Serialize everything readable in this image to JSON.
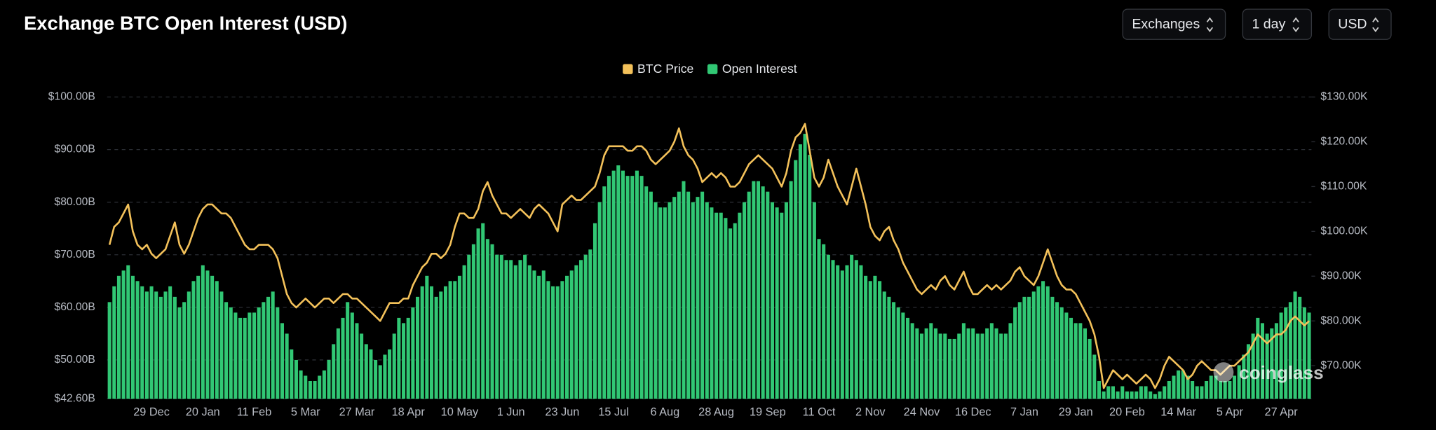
{
  "controls": [
    "Exchanges",
    "1 day",
    "USD"
  ],
  "watermark": "coinglass",
  "chart_data": {
    "type": "combo",
    "title": "Exchange BTC Open Interest (USD)",
    "categories": [
      null,
      null,
      null,
      null,
      null,
      null,
      null,
      null,
      null,
      "29 Dec",
      null,
      null,
      null,
      null,
      null,
      null,
      null,
      null,
      null,
      null,
      "20 Jan",
      null,
      null,
      null,
      null,
      null,
      null,
      null,
      null,
      null,
      null,
      "11 Feb",
      null,
      null,
      null,
      null,
      null,
      null,
      null,
      null,
      null,
      null,
      "5 Mar",
      null,
      null,
      null,
      null,
      null,
      null,
      null,
      null,
      null,
      null,
      "27 Mar",
      null,
      null,
      null,
      null,
      null,
      null,
      null,
      null,
      null,
      null,
      "18 Apr",
      null,
      null,
      null,
      null,
      null,
      null,
      null,
      null,
      null,
      null,
      "10 May",
      null,
      null,
      null,
      null,
      null,
      null,
      null,
      null,
      null,
      null,
      "1 Jun",
      null,
      null,
      null,
      null,
      null,
      null,
      null,
      null,
      null,
      null,
      "23 Jun",
      null,
      null,
      null,
      null,
      null,
      null,
      null,
      null,
      null,
      null,
      "15 Jul",
      null,
      null,
      null,
      null,
      null,
      null,
      null,
      null,
      null,
      null,
      "6 Aug",
      null,
      null,
      null,
      null,
      null,
      null,
      null,
      null,
      null,
      null,
      "28 Aug",
      null,
      null,
      null,
      null,
      null,
      null,
      null,
      null,
      null,
      null,
      "19 Sep",
      null,
      null,
      null,
      null,
      null,
      null,
      null,
      null,
      null,
      null,
      "11 Oct",
      null,
      null,
      null,
      null,
      null,
      null,
      null,
      null,
      null,
      null,
      "2 Nov",
      null,
      null,
      null,
      null,
      null,
      null,
      null,
      null,
      null,
      null,
      "24 Nov",
      null,
      null,
      null,
      null,
      null,
      null,
      null,
      null,
      null,
      null,
      "16 Dec",
      null,
      null,
      null,
      null,
      null,
      null,
      null,
      null,
      null,
      null,
      "7 Jan",
      null,
      null,
      null,
      null,
      null,
      null,
      null,
      null,
      null,
      null,
      "29 Jan",
      null,
      null,
      null,
      null,
      null,
      null,
      null,
      null,
      null,
      null,
      "20 Feb",
      null,
      null,
      null,
      null,
      null,
      null,
      null,
      null,
      null,
      null,
      "14 Mar",
      null,
      null,
      null,
      null,
      null,
      null,
      null,
      null,
      null,
      null,
      "5 Apr",
      null,
      null,
      null,
      null,
      null,
      null,
      null,
      null,
      null,
      null,
      "27 Apr",
      null,
      null,
      null,
      null,
      null,
      null
    ],
    "series": [
      {
        "name": "BTC Price",
        "type": "line",
        "axis": "y2",
        "color": "#f3c15a",
        "values": [
          97,
          101,
          102,
          104,
          106,
          100,
          97,
          96,
          97,
          95,
          94,
          95,
          96,
          99,
          102,
          97,
          95,
          97,
          100,
          103,
          105,
          106,
          106,
          105,
          104,
          104,
          103,
          101,
          99,
          97,
          96,
          96,
          97,
          97,
          97,
          96,
          94,
          90,
          86,
          84,
          83,
          84,
          85,
          84,
          83,
          84,
          85,
          85,
          84,
          85,
          86,
          86,
          85,
          85,
          84,
          83,
          82,
          81,
          80,
          82,
          84,
          84,
          84,
          85,
          85,
          88,
          90,
          92,
          93,
          95,
          95,
          94,
          95,
          97,
          101,
          104,
          104,
          103,
          103,
          105,
          109,
          111,
          108,
          106,
          104,
          104,
          103,
          104,
          105,
          104,
          103,
          105,
          106,
          105,
          104,
          102,
          100,
          106,
          107,
          108,
          107,
          107,
          108,
          109,
          110,
          113,
          117,
          119,
          119,
          119,
          119,
          118,
          118,
          119,
          119,
          118,
          116,
          115,
          116,
          117,
          118,
          120,
          123,
          119,
          117,
          116,
          114,
          111,
          112,
          113,
          112,
          113,
          112,
          110,
          110,
          111,
          113,
          115,
          116,
          117,
          116,
          115,
          114,
          112,
          110,
          113,
          118,
          121,
          122,
          124,
          118,
          112,
          110,
          112,
          116,
          113,
          110,
          108,
          106,
          110,
          114,
          110,
          106,
          101,
          99,
          98,
          100,
          101,
          98,
          96,
          93,
          91,
          89,
          87,
          86,
          87,
          88,
          87,
          89,
          90,
          88,
          87,
          89,
          91,
          88,
          86,
          86,
          87,
          88,
          87,
          88,
          87,
          88,
          89,
          91,
          92,
          90,
          89,
          88,
          90,
          93,
          96,
          93,
          90,
          88,
          87,
          87,
          86,
          84,
          82,
          80,
          77,
          72,
          65,
          67,
          69,
          68,
          67,
          68,
          67,
          66,
          67,
          68,
          67,
          65,
          67,
          70,
          72,
          71,
          70,
          69,
          67,
          68,
          70,
          71,
          70,
          69,
          69,
          68,
          69,
          70,
          70,
          71,
          72,
          73,
          75,
          77,
          76,
          75,
          76,
          77,
          77,
          78,
          80,
          81,
          80,
          79,
          80
        ]
      },
      {
        "name": "Open Interest",
        "type": "bar",
        "axis": "y",
        "color": "#31c774",
        "values": [
          61,
          64,
          66,
          67,
          68,
          66,
          65,
          64,
          63,
          64,
          63,
          62,
          63,
          64,
          62,
          60,
          61,
          63,
          65,
          66,
          68,
          67,
          66,
          65,
          63,
          61,
          60,
          59,
          58,
          58,
          59,
          59,
          60,
          61,
          62,
          63,
          60,
          57,
          55,
          52,
          50,
          48,
          47,
          46,
          46,
          47,
          48,
          50,
          53,
          56,
          58,
          61,
          59,
          57,
          55,
          53,
          52,
          50,
          49,
          51,
          52,
          55,
          58,
          57,
          58,
          60,
          62,
          64,
          66,
          64,
          62,
          63,
          64,
          65,
          65,
          66,
          68,
          70,
          72,
          75,
          76,
          73,
          72,
          70,
          70,
          69,
          69,
          68,
          69,
          70,
          68,
          67,
          66,
          67,
          65,
          64,
          64,
          65,
          66,
          67,
          68,
          69,
          70,
          71,
          76,
          80,
          83,
          85,
          86,
          87,
          86,
          85,
          85,
          86,
          85,
          83,
          82,
          80,
          79,
          79,
          80,
          81,
          82,
          84,
          82,
          80,
          81,
          82,
          80,
          79,
          78,
          78,
          77,
          75,
          76,
          78,
          80,
          82,
          84,
          84,
          83,
          82,
          80,
          79,
          78,
          80,
          84,
          88,
          91,
          93,
          89,
          80,
          73,
          72,
          70,
          69,
          68,
          67,
          68,
          70,
          69,
          68,
          66,
          65,
          66,
          65,
          63,
          62,
          61,
          60,
          59,
          58,
          57,
          56,
          55,
          56,
          57,
          56,
          55,
          55,
          54,
          54,
          55,
          57,
          56,
          56,
          55,
          55,
          56,
          57,
          56,
          55,
          55,
          57,
          60,
          61,
          62,
          62,
          63,
          64,
          65,
          64,
          62,
          61,
          60,
          59,
          58,
          57,
          57,
          56,
          54,
          51,
          46,
          44,
          45,
          45,
          44,
          45,
          44,
          44,
          44,
          45,
          45,
          44,
          43.5,
          44,
          45,
          46,
          47,
          48,
          48,
          47,
          46,
          45,
          45,
          46,
          47,
          47,
          46,
          46,
          46,
          47,
          49,
          51,
          53,
          55,
          58,
          57,
          55,
          56,
          57,
          59,
          60,
          61,
          63,
          62,
          60,
          59
        ]
      }
    ],
    "ylim": [
      42.6,
      100
    ],
    "yticks": [
      {
        "value": 42.6,
        "label": "$42.60B"
      },
      {
        "value": 50,
        "label": "$50.00B"
      },
      {
        "value": 60,
        "label": "$60.00B"
      },
      {
        "value": 70,
        "label": "$70.00B"
      },
      {
        "value": 80,
        "label": "$80.00B"
      },
      {
        "value": 90,
        "label": "$90.00B"
      },
      {
        "value": 100,
        "label": "$100.00B"
      }
    ],
    "y2lim": [
      62.6,
      130
    ],
    "y2ticks": [
      {
        "value": 70,
        "label": "$70.00K"
      },
      {
        "value": 80,
        "label": "$80.00K"
      },
      {
        "value": 90,
        "label": "$90.00K"
      },
      {
        "value": 100,
        "label": "$100.00K"
      },
      {
        "value": 110,
        "label": "$110.00K"
      },
      {
        "value": 120,
        "label": "$120.00K"
      },
      {
        "value": 130,
        "label": "$130.00K"
      }
    ],
    "grid": true,
    "legend": "top"
  }
}
